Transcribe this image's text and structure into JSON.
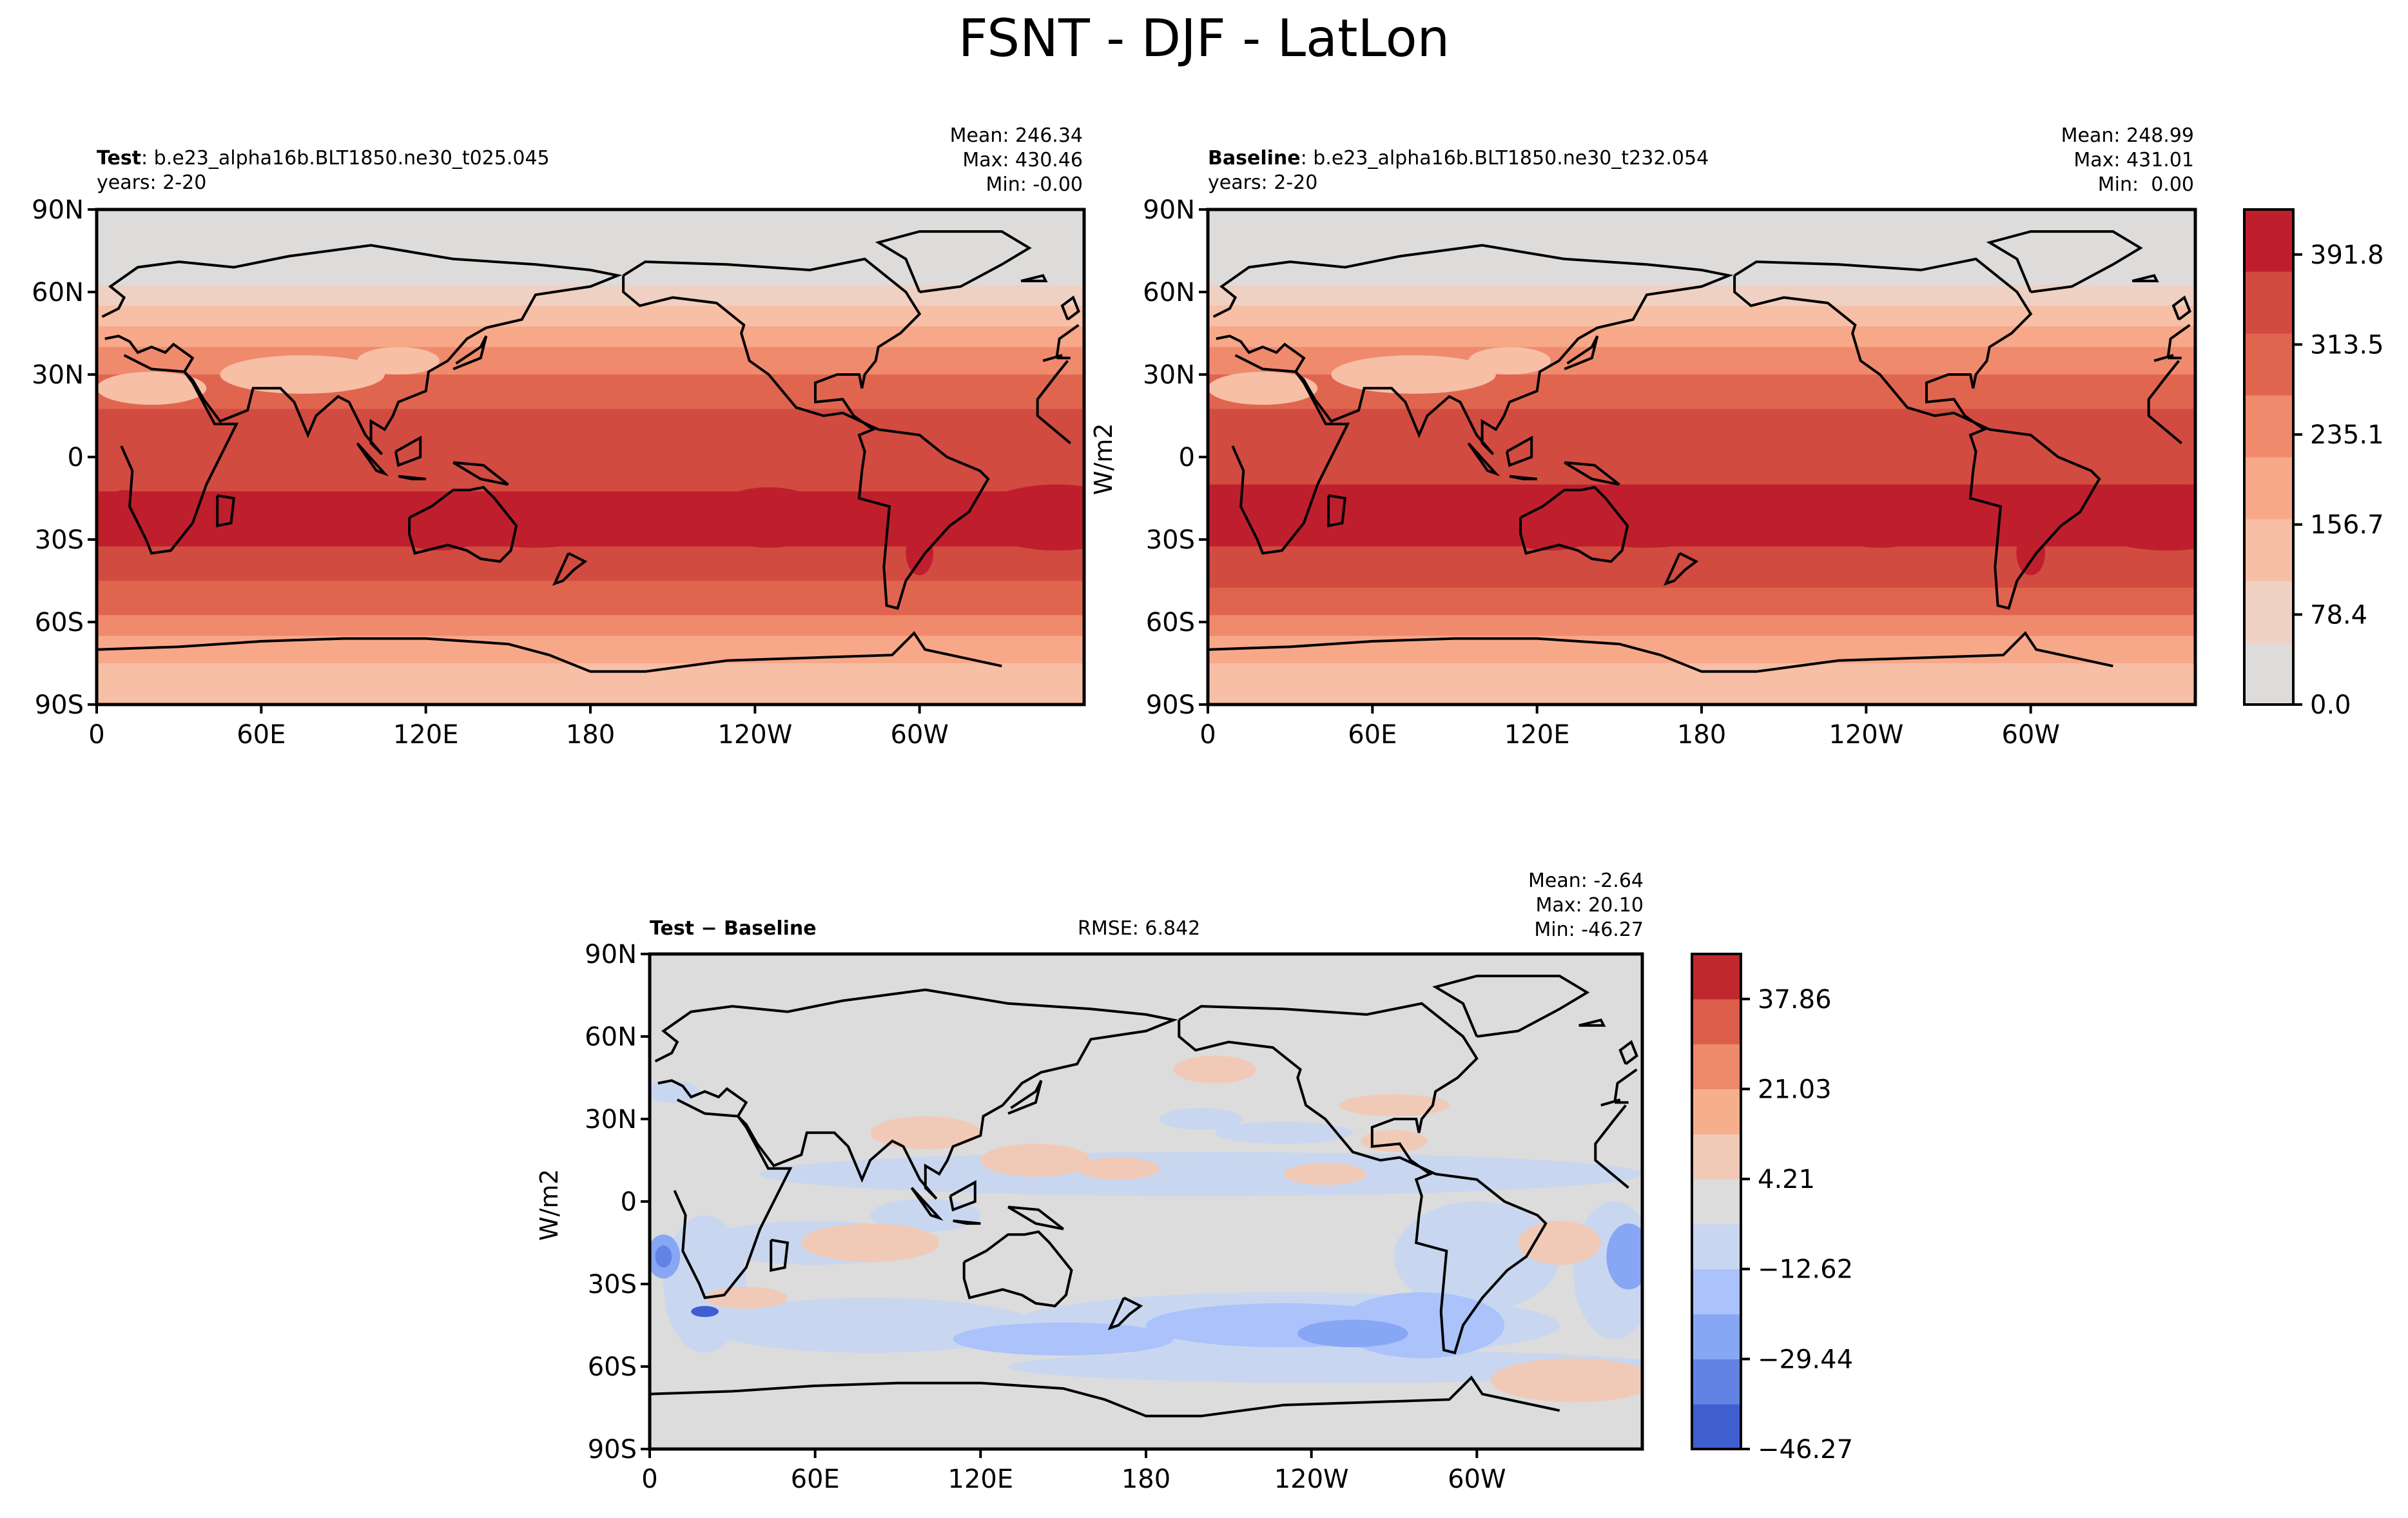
{
  "suptitle": "FSNT - DJF - LatLon",
  "colors": {
    "land_outline": "#000000",
    "ref_levels": [
      "#dddcdb",
      "#efd1c3",
      "#f6bfa6",
      "#f7a889",
      "#f08a6d",
      "#e0654f",
      "#d24b40",
      "#bf1f2d"
    ],
    "diff_levels": [
      "#3f5fd0",
      "#6283e4",
      "#87a6f4",
      "#abc2fb",
      "#c9d6f0",
      "#dcdcdc",
      "#f0cab7",
      "#f6af8d",
      "#ed8a69",
      "#db5e4b",
      "#c0282d"
    ]
  },
  "panels": {
    "test": {
      "title_bold": "Test",
      "title_rest": ": b.e23_alpha16b.BLT1850.ne30_t025.045",
      "years": "years: 2-20",
      "mean": "Mean: 246.34",
      "max": "Max: 430.46",
      "min": "Min: -0.00"
    },
    "baseline": {
      "title_bold": "Baseline",
      "title_rest": ": b.e23_alpha16b.BLT1850.ne30_t232.054",
      "years": "years: 2-20",
      "mean": "Mean: 248.99",
      "max": "Max: 431.01",
      "min": "Min:  0.00"
    },
    "diff": {
      "title_bold": "Test − Baseline",
      "rmse": "RMSE: 6.842",
      "mean": "Mean: -2.64",
      "max": "Max: 20.10",
      "min": "Min: -46.27"
    }
  },
  "axes": {
    "lat_ticks": [
      "90N",
      "60N",
      "30N",
      "0",
      "30S",
      "60S",
      "90S"
    ],
    "lon_ticks": [
      "0",
      "60E",
      "120E",
      "180",
      "120W",
      "60W"
    ]
  },
  "colorbars": {
    "ref": {
      "unit": "W/m2",
      "ticks": [
        "391.8",
        "313.5",
        "235.1",
        "156.7",
        "78.4",
        "0.0"
      ]
    },
    "diff": {
      "unit": "W/m2",
      "ticks": [
        "37.86",
        "21.03",
        "4.21",
        "−12.62",
        "−29.44",
        "−46.27"
      ]
    }
  },
  "chart_data": [
    {
      "type": "heatmap",
      "title": "Test: b.e23_alpha16b.BLT1850.ne30_t025.045",
      "xlabel": "",
      "ylabel": "",
      "x_ticks": [
        "0",
        "60E",
        "120E",
        "180",
        "120W",
        "60W"
      ],
      "y_ticks": [
        "90N",
        "60N",
        "30N",
        "0",
        "30S",
        "60S",
        "90S"
      ],
      "xlim": [
        0,
        360
      ],
      "ylim": [
        -90,
        90
      ],
      "levels": [
        0.0,
        39.2,
        78.4,
        117.6,
        156.7,
        195.9,
        235.1,
        274.3,
        313.5,
        352.6,
        391.8,
        431.0
      ],
      "zonal_profile": [
        {
          "lat": 80,
          "value": 15
        },
        {
          "lat": 65,
          "value": 40
        },
        {
          "lat": 55,
          "value": 110
        },
        {
          "lat": 45,
          "value": 190
        },
        {
          "lat": 30,
          "value": 270
        },
        {
          "lat": 15,
          "value": 330
        },
        {
          "lat": 0,
          "value": 360
        },
        {
          "lat": -15,
          "value": 380
        },
        {
          "lat": -25,
          "value": 400
        },
        {
          "lat": -40,
          "value": 350
        },
        {
          "lat": -55,
          "value": 280
        },
        {
          "lat": -70,
          "value": 170
        },
        {
          "lat": -85,
          "value": 140
        }
      ],
      "stats": {
        "mean": 246.34,
        "max": 430.46,
        "min": -0.0
      }
    },
    {
      "type": "heatmap",
      "title": "Baseline: b.e23_alpha16b.BLT1850.ne30_t232.054",
      "xlabel": "",
      "ylabel": "W/m2",
      "x_ticks": [
        "0",
        "60E",
        "120E",
        "180",
        "120W",
        "60W"
      ],
      "y_ticks": [
        "90N",
        "60N",
        "30N",
        "0",
        "30S",
        "60S",
        "90S"
      ],
      "xlim": [
        0,
        360
      ],
      "ylim": [
        -90,
        90
      ],
      "levels": [
        0.0,
        39.2,
        78.4,
        117.6,
        156.7,
        195.9,
        235.1,
        274.3,
        313.5,
        352.6,
        391.8,
        431.0
      ],
      "zonal_profile": [
        {
          "lat": 80,
          "value": 15
        },
        {
          "lat": 65,
          "value": 40
        },
        {
          "lat": 55,
          "value": 110
        },
        {
          "lat": 45,
          "value": 190
        },
        {
          "lat": 30,
          "value": 270
        },
        {
          "lat": 15,
          "value": 330
        },
        {
          "lat": 0,
          "value": 365
        },
        {
          "lat": -15,
          "value": 385
        },
        {
          "lat": -25,
          "value": 405
        },
        {
          "lat": -40,
          "value": 355
        },
        {
          "lat": -55,
          "value": 285
        },
        {
          "lat": -70,
          "value": 170
        },
        {
          "lat": -85,
          "value": 140
        }
      ],
      "stats": {
        "mean": 248.99,
        "max": 431.01,
        "min": 0.0
      },
      "colorbar_ticks": [
        0.0,
        78.4,
        156.7,
        235.1,
        313.5,
        391.8
      ]
    },
    {
      "type": "heatmap",
      "title": "Test − Baseline",
      "xlabel": "",
      "ylabel": "W/m2",
      "x_ticks": [
        "0",
        "60E",
        "120E",
        "180",
        "120W",
        "60W"
      ],
      "y_ticks": [
        "90N",
        "60N",
        "30N",
        "0",
        "30S",
        "60S",
        "90S"
      ],
      "xlim": [
        0,
        360
      ],
      "ylim": [
        -90,
        90
      ],
      "levels": [
        -46.27,
        -37.86,
        -29.44,
        -21.03,
        -12.62,
        -4.21,
        4.21,
        12.62,
        21.03,
        29.44,
        37.86,
        46.27
      ],
      "colorbar_ticks": [
        -46.27,
        -29.44,
        -12.62,
        4.21,
        21.03,
        37.86
      ],
      "stats": {
        "mean": -2.64,
        "max": 20.1,
        "min": -46.27,
        "rmse": 6.842
      }
    }
  ]
}
